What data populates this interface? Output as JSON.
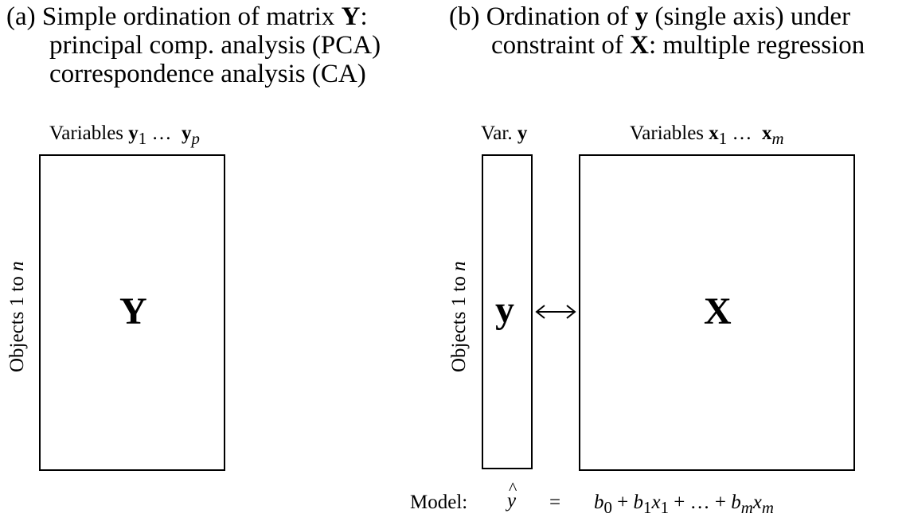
{
  "panel_a": {
    "letter": "(a)",
    "title_line1_prefix": "Simple ordination of matrix",
    "title_line1_symbol": "Y",
    "title_line1_suffix": ":",
    "title_line2": "principal comp. analysis (PCA)",
    "title_line3": "correspondence analysis (CA)",
    "columns_prefix": "Variables",
    "col_first_symbol": "y",
    "col_first_sub": "1",
    "ellipsis": "…",
    "col_last_symbol": "y",
    "col_last_sub": "p",
    "rows_label_text": "Objects 1 to",
    "rows_label_n": "n",
    "matrix_symbol": "Y"
  },
  "panel_b": {
    "letter": "(b)",
    "title_line1_prefix": "Ordination of",
    "title_line1_symbol": "y",
    "title_line1_suffix": "(single axis) under",
    "title_line2_prefix": "constraint of",
    "title_line2_symbol": "X",
    "title_line2_suffix": ": multiple regression",
    "var_y_prefix": "Var.",
    "var_y_symbol": "y",
    "x_columns_prefix": "Variables",
    "x_first_symbol": "x",
    "x_first_sub": "1",
    "ellipsis": "…",
    "x_last_symbol": "x",
    "x_last_sub": "m",
    "rows_label_text": "Objects 1 to",
    "rows_label_n": "n",
    "y_symbol": "y",
    "x_symbol": "X",
    "arrow_icon": "double-arrow-icon"
  },
  "model": {
    "label": "Model:",
    "lhs_hat": "^",
    "lhs": "y",
    "equals": "=",
    "b0": "b",
    "b0_sub": "0",
    "plus1": "+",
    "b1": "b",
    "b1_sub": "1",
    "x1": "x",
    "x1_sub": "1",
    "plus2": "+",
    "dots": "…",
    "plus3": "+",
    "bm": "b",
    "bm_sub": "m",
    "xm": "x",
    "xm_sub": "m"
  }
}
